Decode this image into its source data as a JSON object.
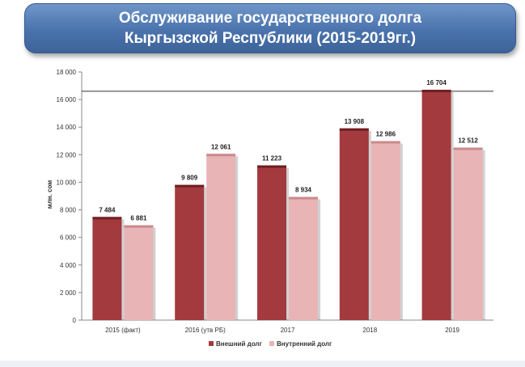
{
  "title": {
    "line1": "Обслуживание государственного долга",
    "line2": "Кыргызской Республики (2015-2019гг.)"
  },
  "chart_data": {
    "type": "bar",
    "ylabel": "млн. сом",
    "ylim": [
      0,
      18000
    ],
    "yticks": [
      0,
      2000,
      4000,
      6000,
      8000,
      10000,
      12000,
      14000,
      16000,
      18000
    ],
    "ytick_labels": [
      "0",
      "2 000",
      "4 000",
      "6 000",
      "8 000",
      "10 000",
      "12 000",
      "14 000",
      "16 000",
      "18 000"
    ],
    "categories": [
      "2015 (факт)",
      "2016 (утв РБ)",
      "2017",
      "2018",
      "2019"
    ],
    "series": [
      {
        "name": "Внешний долг",
        "color": "#a33a3e",
        "values": [
          7484,
          9809,
          11223,
          13908,
          16704
        ],
        "labels": [
          "7 484",
          "9 809",
          "11 223",
          "13 908",
          "16 704"
        ]
      },
      {
        "name": "Внутренний долг",
        "color": "#e8b4b6",
        "values": [
          6881,
          12061,
          8934,
          12986,
          12512
        ],
        "labels": [
          "6 881",
          "12 061",
          "8 934",
          "12 986",
          "12 512"
        ]
      }
    ],
    "reference_line": 16600,
    "legend": "bottom"
  }
}
